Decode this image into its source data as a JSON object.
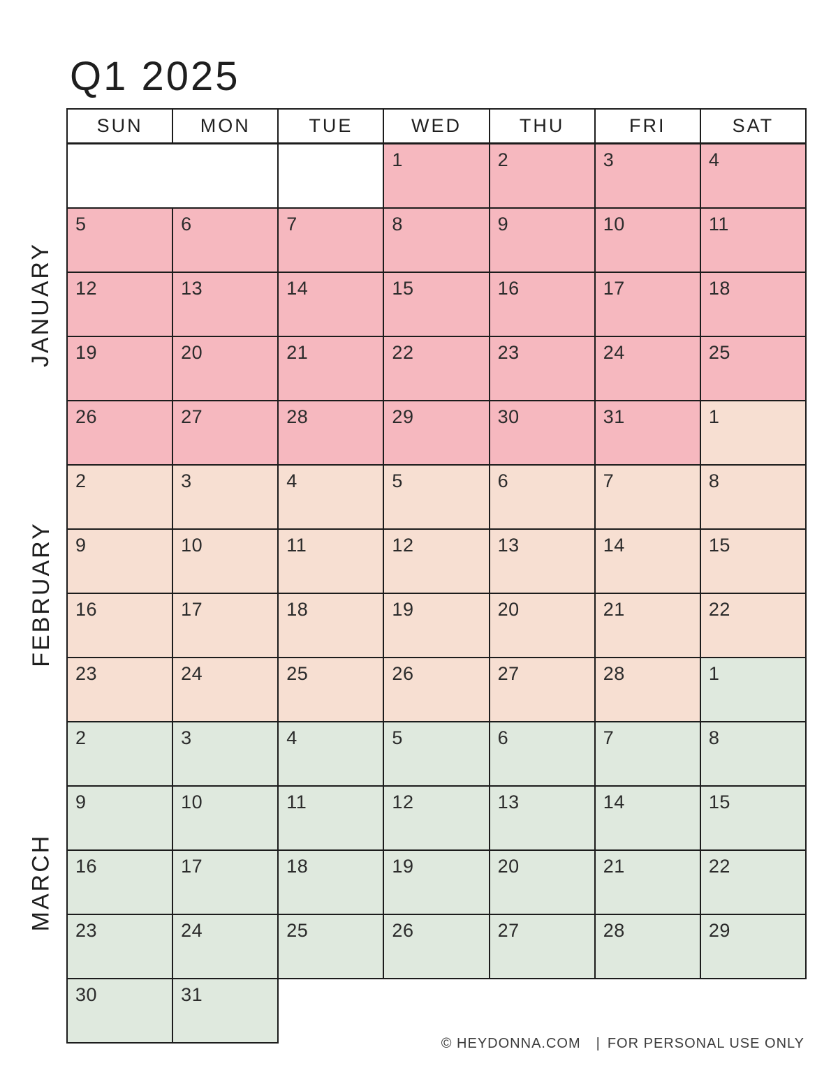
{
  "page_title": "Q1 2025",
  "weekday_headers": [
    "SUN",
    "MON",
    "TUE",
    "WED",
    "THU",
    "FRI",
    "SAT"
  ],
  "months": [
    {
      "name": "JANUARY",
      "color": "#f6b8bf"
    },
    {
      "name": "FEBRUARY",
      "color": "#f7dfd2"
    },
    {
      "name": "MARCH",
      "color": "#dfe9de"
    }
  ],
  "weeks": [
    [
      {
        "type": "empty",
        "span": 2
      },
      {
        "type": "empty",
        "span": 1
      },
      {
        "day": "1",
        "month": 0
      },
      {
        "day": "2",
        "month": 0
      },
      {
        "day": "3",
        "month": 0
      },
      {
        "day": "4",
        "month": 0
      }
    ],
    [
      {
        "day": "5",
        "month": 0
      },
      {
        "day": "6",
        "month": 0
      },
      {
        "day": "7",
        "month": 0
      },
      {
        "day": "8",
        "month": 0
      },
      {
        "day": "9",
        "month": 0
      },
      {
        "day": "10",
        "month": 0
      },
      {
        "day": "11",
        "month": 0
      }
    ],
    [
      {
        "day": "12",
        "month": 0
      },
      {
        "day": "13",
        "month": 0
      },
      {
        "day": "14",
        "month": 0
      },
      {
        "day": "15",
        "month": 0
      },
      {
        "day": "16",
        "month": 0
      },
      {
        "day": "17",
        "month": 0
      },
      {
        "day": "18",
        "month": 0
      }
    ],
    [
      {
        "day": "19",
        "month": 0
      },
      {
        "day": "20",
        "month": 0
      },
      {
        "day": "21",
        "month": 0
      },
      {
        "day": "22",
        "month": 0
      },
      {
        "day": "23",
        "month": 0
      },
      {
        "day": "24",
        "month": 0
      },
      {
        "day": "25",
        "month": 0
      }
    ],
    [
      {
        "day": "26",
        "month": 0
      },
      {
        "day": "27",
        "month": 0
      },
      {
        "day": "28",
        "month": 0
      },
      {
        "day": "29",
        "month": 0
      },
      {
        "day": "30",
        "month": 0
      },
      {
        "day": "31",
        "month": 0
      },
      {
        "day": "1",
        "month": 1
      }
    ],
    [
      {
        "day": "2",
        "month": 1
      },
      {
        "day": "3",
        "month": 1
      },
      {
        "day": "4",
        "month": 1
      },
      {
        "day": "5",
        "month": 1
      },
      {
        "day": "6",
        "month": 1
      },
      {
        "day": "7",
        "month": 1
      },
      {
        "day": "8",
        "month": 1
      }
    ],
    [
      {
        "day": "9",
        "month": 1
      },
      {
        "day": "10",
        "month": 1
      },
      {
        "day": "11",
        "month": 1
      },
      {
        "day": "12",
        "month": 1
      },
      {
        "day": "13",
        "month": 1
      },
      {
        "day": "14",
        "month": 1
      },
      {
        "day": "15",
        "month": 1
      }
    ],
    [
      {
        "day": "16",
        "month": 1
      },
      {
        "day": "17",
        "month": 1
      },
      {
        "day": "18",
        "month": 1
      },
      {
        "day": "19",
        "month": 1
      },
      {
        "day": "20",
        "month": 1
      },
      {
        "day": "21",
        "month": 1
      },
      {
        "day": "22",
        "month": 1
      }
    ],
    [
      {
        "day": "23",
        "month": 1
      },
      {
        "day": "24",
        "month": 1
      },
      {
        "day": "25",
        "month": 1
      },
      {
        "day": "26",
        "month": 1
      },
      {
        "day": "27",
        "month": 1
      },
      {
        "day": "28",
        "month": 1
      },
      {
        "day": "1",
        "month": 2
      }
    ],
    [
      {
        "day": "2",
        "month": 2
      },
      {
        "day": "3",
        "month": 2
      },
      {
        "day": "4",
        "month": 2
      },
      {
        "day": "5",
        "month": 2
      },
      {
        "day": "6",
        "month": 2
      },
      {
        "day": "7",
        "month": 2
      },
      {
        "day": "8",
        "month": 2
      }
    ],
    [
      {
        "day": "9",
        "month": 2
      },
      {
        "day": "10",
        "month": 2
      },
      {
        "day": "11",
        "month": 2
      },
      {
        "day": "12",
        "month": 2
      },
      {
        "day": "13",
        "month": 2
      },
      {
        "day": "14",
        "month": 2
      },
      {
        "day": "15",
        "month": 2
      }
    ],
    [
      {
        "day": "16",
        "month": 2
      },
      {
        "day": "17",
        "month": 2
      },
      {
        "day": "18",
        "month": 2
      },
      {
        "day": "19",
        "month": 2
      },
      {
        "day": "20",
        "month": 2
      },
      {
        "day": "21",
        "month": 2
      },
      {
        "day": "22",
        "month": 2
      }
    ],
    [
      {
        "day": "23",
        "month": 2
      },
      {
        "day": "24",
        "month": 2
      },
      {
        "day": "25",
        "month": 2
      },
      {
        "day": "26",
        "month": 2
      },
      {
        "day": "27",
        "month": 2
      },
      {
        "day": "28",
        "month": 2
      },
      {
        "day": "29",
        "month": 2
      }
    ],
    [
      {
        "day": "30",
        "month": 2
      },
      {
        "day": "31",
        "month": 2
      },
      {
        "type": "void"
      },
      {
        "type": "void"
      },
      {
        "type": "void"
      },
      {
        "type": "void"
      },
      {
        "type": "void"
      }
    ]
  ],
  "footer": {
    "copyright": "© HEYDONNA.COM",
    "divider": "|",
    "note": "FOR PERSONAL USE ONLY"
  }
}
